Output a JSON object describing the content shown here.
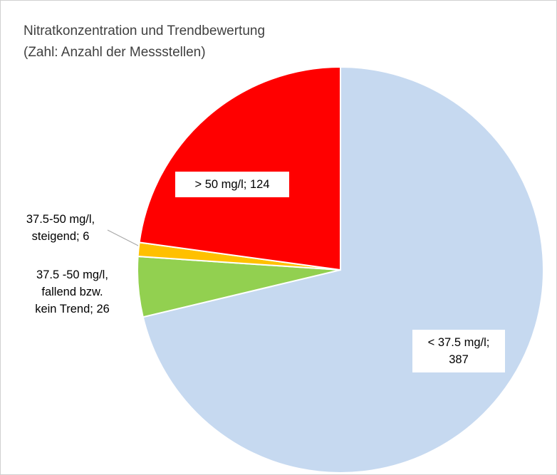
{
  "chart_data": {
    "type": "pie",
    "title": "Nitratkonzentration und Trendbewertung",
    "subtitle": "(Zahl: Anzahl der Messstellen)",
    "categories": [
      "< 37.5 mg/l;",
      "37.5 -50 mg/l,\nfallend bzw.\nkein Trend;",
      "37.5-50 mg/l,\nsteigend;",
      "> 50 mg/l;"
    ],
    "values": [
      387,
      26,
      6,
      124
    ],
    "colors": [
      "#c6d9f0",
      "#92d050",
      "#ffc000",
      "#ff0000"
    ]
  }
}
